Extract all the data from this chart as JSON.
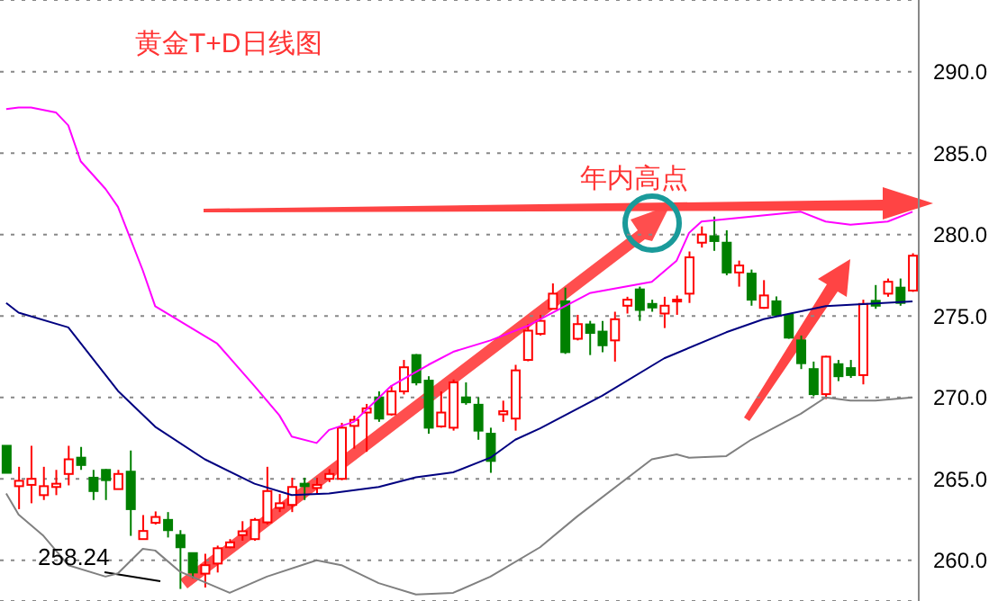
{
  "chart_data": {
    "type": "candlestick",
    "title": "黄金T+D日线图",
    "categories": [
      null,
      null,
      null,
      null,
      null,
      null,
      null,
      null,
      null,
      null,
      null,
      null,
      null,
      null,
      null,
      null,
      null,
      null,
      null,
      null,
      null,
      null,
      null,
      null,
      null,
      null,
      null,
      null,
      null,
      null,
      null,
      null,
      null,
      null,
      null,
      null,
      null,
      null,
      null,
      null,
      null,
      null,
      null,
      null,
      null,
      null,
      null,
      null,
      null,
      null,
      null,
      null,
      null,
      null,
      null,
      null,
      null,
      null,
      null,
      null,
      null,
      null,
      null,
      null,
      null,
      null,
      null,
      null,
      null,
      null,
      null,
      null,
      null,
      null
    ],
    "ohlc": [
      [
        267.03,
        267.03,
        265.37,
        265.37
      ],
      [
        264.55,
        265.74,
        263.14,
        264.88
      ],
      [
        264.63,
        267.03,
        263.5,
        265.0
      ],
      [
        264.0,
        265.74,
        263.7,
        264.55
      ],
      [
        264.5,
        265.55,
        264.0,
        264.7
      ],
      [
        265.3,
        267.03,
        264.6,
        266.2
      ],
      [
        266.3,
        266.96,
        265.55,
        265.85
      ],
      [
        265.07,
        265.55,
        263.7,
        264.25
      ],
      [
        265.55,
        265.6,
        263.7,
        264.92
      ],
      [
        264.37,
        265.55,
        264.37,
        265.3
      ],
      [
        265.44,
        266.74,
        261.5,
        263.14
      ],
      [
        261.3,
        262.77,
        261.3,
        261.8
      ],
      [
        262.3,
        263.0,
        262.2,
        262.66
      ],
      [
        262.48,
        262.96,
        261.4,
        261.85
      ],
      [
        261.55,
        261.85,
        258.24,
        260.8
      ],
      [
        260.44,
        260.44,
        258.9,
        259.25
      ],
      [
        259.18,
        260.4,
        258.33,
        259.7
      ],
      [
        259.8,
        260.9,
        259.25,
        260.74
      ],
      [
        260.8,
        261.3,
        260.74,
        261.1
      ],
      [
        261.55,
        262.4,
        261.2,
        261.78
      ],
      [
        261.3,
        262.6,
        261.2,
        262.48
      ],
      [
        262.33,
        265.74,
        262.2,
        264.25
      ],
      [
        263.22,
        264.07,
        262.96,
        263.5
      ],
      [
        263.4,
        265.07,
        262.96,
        264.5
      ],
      [
        264.7,
        265.07,
        263.7,
        264.55
      ],
      [
        264.44,
        265.07,
        264.07,
        264.63
      ],
      [
        265.0,
        265.6,
        264.8,
        265.3
      ],
      [
        265.0,
        268.44,
        264.92,
        268.14
      ],
      [
        268.25,
        268.88,
        266.85,
        268.62
      ],
      [
        269.07,
        269.6,
        266.66,
        269.33
      ],
      [
        270.0,
        270.37,
        268.5,
        268.7
      ],
      [
        268.96,
        270.74,
        268.88,
        270.37
      ],
      [
        270.37,
        272.3,
        270.18,
        271.85
      ],
      [
        272.6,
        272.66,
        270.74,
        270.92
      ],
      [
        271.03,
        271.3,
        267.77,
        268.14
      ],
      [
        268.22,
        270.37,
        268.14,
        269.07
      ],
      [
        268.14,
        271.1,
        267.96,
        270.92
      ],
      [
        270.0,
        270.92,
        269.55,
        269.7
      ],
      [
        269.55,
        270.0,
        267.4,
        267.96
      ],
      [
        267.77,
        268.14,
        265.37,
        266.1
      ],
      [
        268.96,
        269.8,
        268.5,
        269.15
      ],
      [
        268.7,
        272.0,
        267.96,
        271.66
      ],
      [
        272.3,
        274.5,
        272.22,
        274.1
      ],
      [
        273.9,
        275.07,
        273.8,
        274.7
      ],
      [
        275.44,
        277.0,
        275.44,
        276.37
      ],
      [
        275.9,
        276.74,
        272.67,
        272.78
      ],
      [
        273.6,
        275.07,
        273.5,
        274.5
      ],
      [
        274.48,
        274.7,
        272.6,
        273.96
      ],
      [
        274.04,
        274.7,
        272.78,
        273.2
      ],
      [
        273.5,
        275.26,
        272.2,
        274.8
      ],
      [
        275.63,
        276.18,
        275.15,
        276.0
      ],
      [
        276.63,
        276.8,
        274.7,
        275.37
      ],
      [
        275.74,
        276.0,
        275.26,
        275.52
      ],
      [
        275.15,
        276.18,
        274.26,
        275.63
      ],
      [
        275.9,
        276.26,
        275.07,
        276.0
      ],
      [
        276.37,
        278.96,
        275.8,
        278.6
      ],
      [
        279.5,
        280.5,
        279.2,
        280.0
      ],
      [
        279.9,
        281.1,
        279.0,
        279.6
      ],
      [
        279.5,
        280.26,
        277.5,
        277.67
      ],
      [
        277.67,
        278.4,
        276.8,
        278.1
      ],
      [
        277.6,
        277.85,
        275.63,
        276.0
      ],
      [
        275.5,
        277.2,
        275.44,
        276.26
      ],
      [
        275.9,
        276.2,
        275.0,
        275.07
      ],
      [
        275.07,
        275.15,
        273.6,
        273.67
      ],
      [
        273.5,
        273.8,
        271.74,
        272.1
      ],
      [
        271.74,
        272.2,
        270.07,
        270.2
      ],
      [
        270.2,
        272.55,
        269.9,
        272.5
      ],
      [
        272.04,
        272.3,
        271.0,
        271.3
      ],
      [
        271.8,
        272.3,
        271.2,
        271.37
      ],
      [
        271.37,
        276.0,
        270.8,
        275.74
      ],
      [
        275.93,
        276.9,
        275.44,
        275.63
      ],
      [
        276.37,
        277.3,
        276.18,
        277.1
      ],
      [
        276.74,
        277.3,
        275.63,
        275.8
      ],
      [
        276.56,
        278.85,
        276.48,
        278.7
      ]
    ],
    "colors": [
      "#008000",
      "#ff0000",
      "#ff0000",
      "#ff0000",
      "#ff0000",
      "#ff0000",
      "#008000",
      "#008000",
      "#008000",
      "#ff0000",
      "#008000",
      "#ff0000",
      "#ff0000",
      "#008000",
      "#008000",
      "#008000",
      "#ff0000",
      "#ff0000",
      "#ff0000",
      "#ff0000",
      "#ff0000",
      "#ff0000",
      "#ff0000",
      "#ff0000",
      "#008000",
      "#ff0000",
      "#ff0000",
      "#ff0000",
      "#ff0000",
      "#ff0000",
      "#008000",
      "#ff0000",
      "#ff0000",
      "#008000",
      "#008000",
      "#ff0000",
      "#ff0000",
      "#008000",
      "#008000",
      "#008000",
      "#ff0000",
      "#ff0000",
      "#ff0000",
      "#ff0000",
      "#ff0000",
      "#008000",
      "#ff0000",
      "#008000",
      "#008000",
      "#ff0000",
      "#ff0000",
      "#008000",
      "#008000",
      "#ff0000",
      "#ff0000",
      "#ff0000",
      "#ff0000",
      "#008000",
      "#008000",
      "#ff0000",
      "#008000",
      "#ff0000",
      "#008000",
      "#008000",
      "#008000",
      "#008000",
      "#ff0000",
      "#008000",
      "#008000",
      "#ff0000",
      "#008000",
      "#ff0000",
      "#008000",
      "#ff0000"
    ],
    "series": [
      {
        "type": "line",
        "color": "#ff00ff",
        "values": [
          287.7,
          287.8,
          287.8,
          null,
          287.5,
          286.7,
          284.5,
          null,
          282.8,
          281.7,
          null,
          277.8,
          275.6,
          null,
          null,
          null,
          null,
          273.3,
          null,
          null,
          270.7,
          null,
          268.9,
          267.6,
          null,
          267.2,
          268.0,
          null,
          268.5,
          null,
          null,
          270.7,
          null,
          null,
          272.0,
          null,
          272.8,
          null,
          null,
          273.5,
          null,
          null,
          274.4,
          null,
          null,
          null,
          null,
          276.4,
          null,
          null,
          null,
          null,
          277.1,
          null,
          278.4,
          280.1,
          280.8,
          null,
          null,
          null,
          null,
          null,
          null,
          null,
          281.4,
          null,
          280.8,
          null,
          280.6,
          null,
          null,
          280.8,
          null,
          281.4
        ]
      },
      {
        "type": "line",
        "color": "#000080",
        "values": [
          275.8,
          275.2,
          null,
          null,
          null,
          274.3,
          null,
          null,
          null,
          270.4,
          null,
          null,
          268.2,
          null,
          null,
          null,
          266.2,
          null,
          null,
          null,
          264.7,
          null,
          null,
          264.0,
          null,
          null,
          264.1,
          null,
          null,
          null,
          264.5,
          null,
          null,
          265.1,
          null,
          null,
          265.4,
          null,
          null,
          266.3,
          null,
          267.4,
          null,
          268.1,
          null,
          null,
          null,
          null,
          270.1,
          null,
          null,
          null,
          null,
          272.4,
          null,
          null,
          null,
          null,
          274.0,
          null,
          null,
          274.8,
          null,
          null,
          null,
          null,
          275.6,
          null,
          null,
          null,
          null,
          null,
          null,
          275.9
        ]
      },
      {
        "type": "line",
        "color": "#808080",
        "values": [
          264.1,
          262.8,
          null,
          261.5,
          null,
          259.7,
          null,
          null,
          259.0,
          259.2,
          null,
          260.7,
          260.6,
          null,
          259.3,
          null,
          null,
          null,
          258.0,
          null,
          null,
          259.0,
          null,
          null,
          null,
          260.0,
          null,
          259.7,
          null,
          null,
          258.6,
          null,
          null,
          257.9,
          null,
          null,
          258.0,
          null,
          null,
          259.0,
          null,
          null,
          null,
          260.8,
          null,
          null,
          262.7,
          null,
          null,
          null,
          null,
          null,
          266.2,
          null,
          266.5,
          266.3,
          null,
          null,
          266.4,
          null,
          267.4,
          null,
          null,
          null,
          269.0,
          null,
          270.0,
          null,
          269.8,
          null,
          269.8,
          null,
          null,
          270.0
        ]
      }
    ],
    "ylim": [
      257.5,
      294.4
    ],
    "yticks": [
      {
        "value": 260,
        "label": "260.0"
      },
      {
        "value": 265,
        "label": "265.0"
      },
      {
        "value": 270,
        "label": "270.0"
      },
      {
        "value": 275,
        "label": "275.0"
      },
      {
        "value": 280,
        "label": "280.0"
      },
      {
        "value": 285,
        "label": "285.0"
      },
      {
        "value": 290,
        "label": "290.0"
      }
    ],
    "grid": "y",
    "tick_labels": "y",
    "line_style": "solid",
    "marker": "none",
    "annotations": [
      "年内高点",
      "258.24"
    ]
  }
}
